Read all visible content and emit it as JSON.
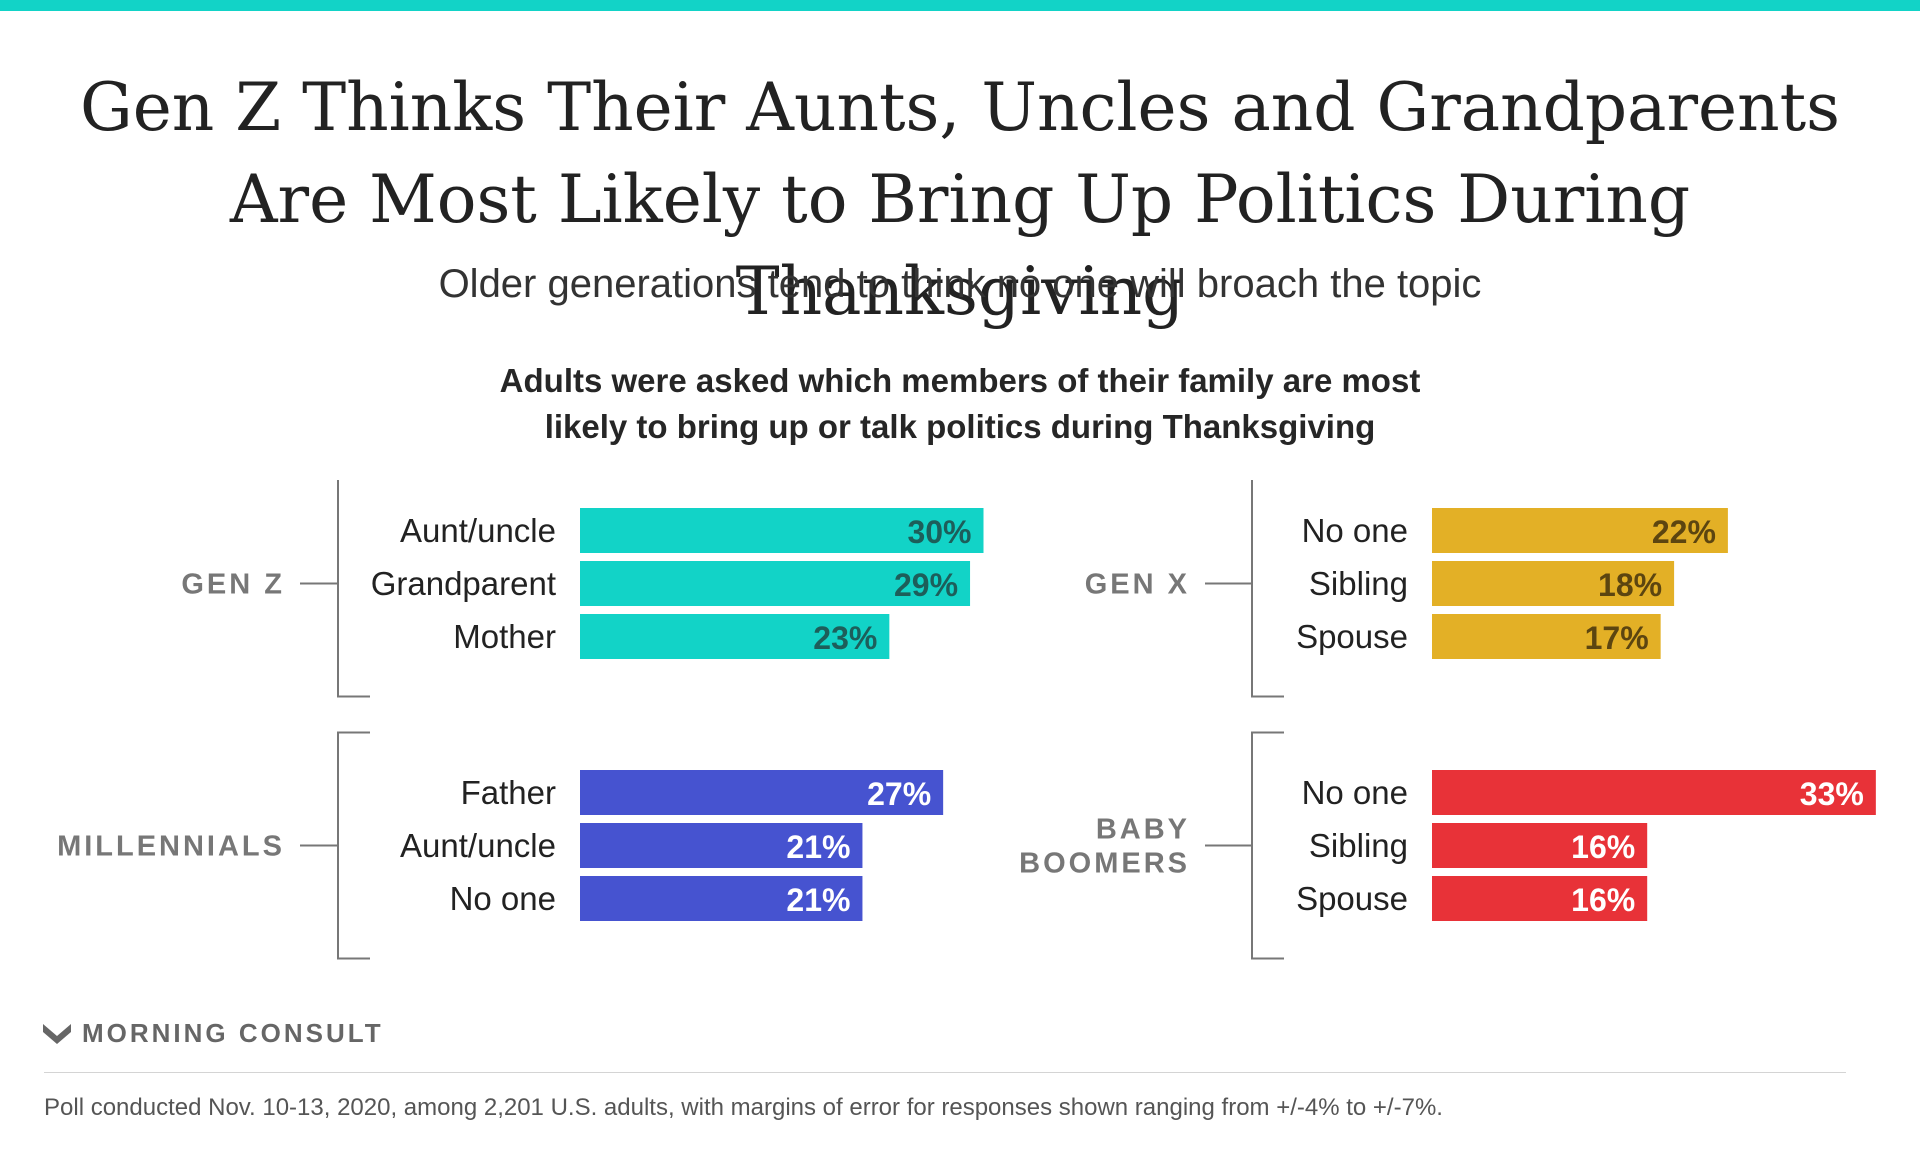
{
  "header": {
    "title_line1": "Gen Z Thinks Their Aunts, Uncles and Grandparents",
    "title_line2": "Are Most Likely to Bring Up Politics During Thanksgiving",
    "subtitle": "Older generations tend to think no one will broach the topic",
    "question_line1": "Adults were asked which members of their family are most",
    "question_line2": "likely to bring up or talk politics during Thanksgiving"
  },
  "chart_data": {
    "type": "bar",
    "orientation": "horizontal",
    "unit": "%",
    "groups": [
      {
        "name": "GEN Z",
        "color": "#12d3c7",
        "label_color": "#1d5e5a",
        "categories": [
          "Aunt/uncle",
          "Grandparent",
          "Mother"
        ],
        "values": [
          30,
          29,
          23
        ]
      },
      {
        "name": "GEN X",
        "color": "#e3b026",
        "label_color": "#5c4510",
        "categories": [
          "No one",
          "Sibling",
          "Spouse"
        ],
        "values": [
          22,
          18,
          17
        ]
      },
      {
        "name": "MILLENNIALS",
        "color": "#4653d0",
        "label_color": "#ffffff",
        "categories": [
          "Father",
          "Aunt/uncle",
          "No one"
        ],
        "values": [
          27,
          21,
          21
        ]
      },
      {
        "name": "BABY BOOMERS",
        "color": "#e83238",
        "label_color": "#ffffff",
        "categories": [
          "No one",
          "Sibling",
          "Spouse"
        ],
        "values": [
          33,
          16,
          16
        ]
      }
    ]
  },
  "footer": {
    "brand": "MORNING CONSULT",
    "note": "Poll conducted Nov. 10-13, 2020, among 2,201 U.S. adults, with margins of error for responses shown ranging from +/-4% to +/-7%."
  }
}
